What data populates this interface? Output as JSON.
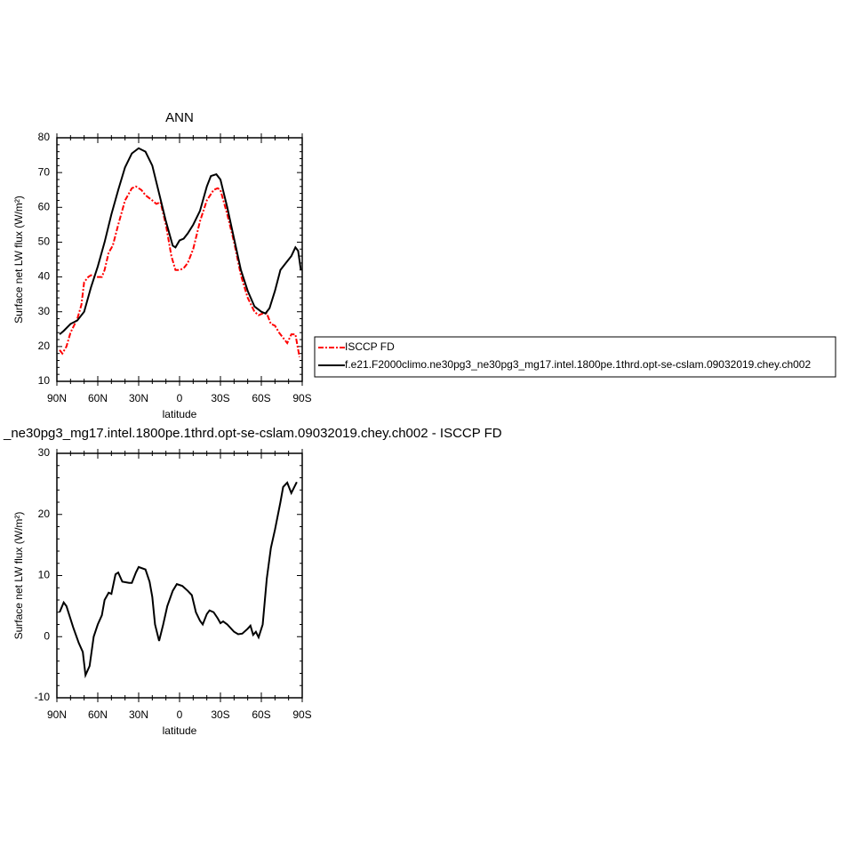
{
  "chart_data": [
    {
      "type": "line",
      "title": "ANN",
      "x_label": "latitude",
      "y_label": "Surface net LW flux (W/m²)",
      "xlim": [
        90,
        -90
      ],
      "ylim": [
        10,
        80
      ],
      "xticks": [
        {
          "value": 90,
          "label": "90N"
        },
        {
          "value": 60,
          "label": "60N"
        },
        {
          "value": 30,
          "label": "30N"
        },
        0,
        {
          "value": -30,
          "label": "30S"
        },
        {
          "value": -60,
          "label": "60S"
        },
        {
          "value": -90,
          "label": "90S"
        }
      ],
      "yticks": [
        10,
        20,
        30,
        40,
        50,
        60,
        70,
        80
      ],
      "legend": "right",
      "series": [
        {
          "name": "ISCCP FD",
          "color": "#ff0000",
          "line_style": "dashed",
          "x": [
            88,
            86,
            83,
            80,
            75,
            72,
            70,
            67,
            65,
            62,
            57,
            55,
            52,
            49,
            45,
            40,
            35,
            32,
            28,
            25,
            20,
            17,
            14,
            10,
            6,
            3,
            0,
            -3,
            -6,
            -10,
            -15,
            -20,
            -25,
            -28,
            -30,
            -35,
            -40,
            -45,
            -50,
            -55,
            -58,
            -61,
            -64,
            -67,
            -70,
            -73,
            -76,
            -79,
            -82,
            -85,
            -88
          ],
          "values": [
            19,
            18,
            20,
            24,
            28,
            32,
            38.5,
            40,
            40.5,
            40,
            40,
            42,
            47,
            49,
            55,
            62,
            65.5,
            66,
            65,
            63.5,
            62,
            61,
            61.5,
            55,
            46,
            42,
            42,
            42.5,
            44,
            48,
            56,
            62,
            65,
            65.5,
            65,
            58,
            50,
            40.5,
            34,
            30,
            29,
            29.5,
            29.5,
            26.5,
            26,
            24,
            22.5,
            21,
            23.5,
            23.5,
            17
          ]
        },
        {
          "name": "f.e21.F2000climo.ne30pg3_ne30pg3_mg17.intel.1800pe.1thrd.opt-se-cslam.09032019.chey.ch002",
          "color": "#000000",
          "line_style": "solid",
          "x": [
            88,
            85,
            80,
            75,
            70,
            65,
            60,
            55,
            50,
            45,
            40,
            35,
            30,
            25,
            20,
            15,
            10,
            5,
            3,
            0,
            -3,
            -6,
            -10,
            -15,
            -20,
            -23,
            -27,
            -30,
            -35,
            -40,
            -45,
            -50,
            -55,
            -60,
            -63,
            -66,
            -70,
            -74,
            -78,
            -82,
            -85,
            -87,
            -89
          ],
          "values": [
            23.5,
            24.5,
            26.5,
            27.5,
            30,
            37,
            43,
            50,
            58,
            65,
            71.5,
            75.5,
            77,
            76,
            72,
            64,
            56,
            49,
            48.5,
            50.5,
            51,
            52.5,
            55,
            59,
            66,
            69,
            69.5,
            68,
            60,
            51,
            42,
            36,
            31.5,
            30,
            29.5,
            31,
            36,
            42,
            44,
            46,
            48.5,
            47.5,
            42
          ]
        }
      ]
    },
    {
      "type": "line",
      "title": "_ne30pg3_mg17.intel.1800pe.1thrd.opt-se-cslam.09032019.chey.ch002 - ISCCP FD",
      "x_label": "latitude",
      "y_label": "Surface net LW flux (W/m²)",
      "xlim": [
        90,
        -90
      ],
      "ylim": [
        -10,
        30
      ],
      "xticks": [
        {
          "value": 90,
          "label": "90N"
        },
        {
          "value": 60,
          "label": "60N"
        },
        {
          "value": 30,
          "label": "30N"
        },
        0,
        {
          "value": -30,
          "label": "30S"
        },
        {
          "value": -60,
          "label": "60S"
        },
        {
          "value": -90,
          "label": "90S"
        }
      ],
      "yticks": [
        -10,
        0,
        10,
        20,
        30
      ],
      "color": "#000000",
      "x": [
        88,
        85,
        83,
        78,
        74,
        71,
        69,
        66,
        63,
        60,
        57,
        55,
        52,
        50,
        47,
        45,
        42,
        37,
        35,
        32,
        30,
        25,
        22,
        20,
        18,
        15,
        12,
        9,
        5,
        2,
        -2,
        -6,
        -9,
        -12,
        -15,
        -17,
        -20,
        -22,
        -25,
        -28,
        -30,
        -32,
        -35,
        -40,
        -43,
        -46,
        -50,
        -52,
        -54,
        -56,
        -58,
        -61,
        -64,
        -67,
        -70,
        -74,
        -76,
        -79,
        -82,
        -86
      ],
      "values": [
        4,
        5.6,
        5,
        1.5,
        -1,
        -2.5,
        -6.3,
        -4.8,
        0,
        2,
        3.5,
        6,
        7.2,
        7,
        10.2,
        10.5,
        9,
        8.8,
        8.8,
        10.5,
        11.4,
        11,
        9,
        6.5,
        2,
        -0.7,
        2,
        5,
        7.5,
        8.6,
        8.3,
        7.5,
        6.8,
        4,
        2.6,
        2,
        3.7,
        4.3,
        4,
        3,
        2.2,
        2.5,
        2,
        0.8,
        0.4,
        0.5,
        1.3,
        1.8,
        0.3,
        0.8,
        -0.1,
        2,
        9.5,
        14.5,
        17.5,
        22,
        24.5,
        25.2,
        23.5,
        25.3
      ]
    }
  ]
}
